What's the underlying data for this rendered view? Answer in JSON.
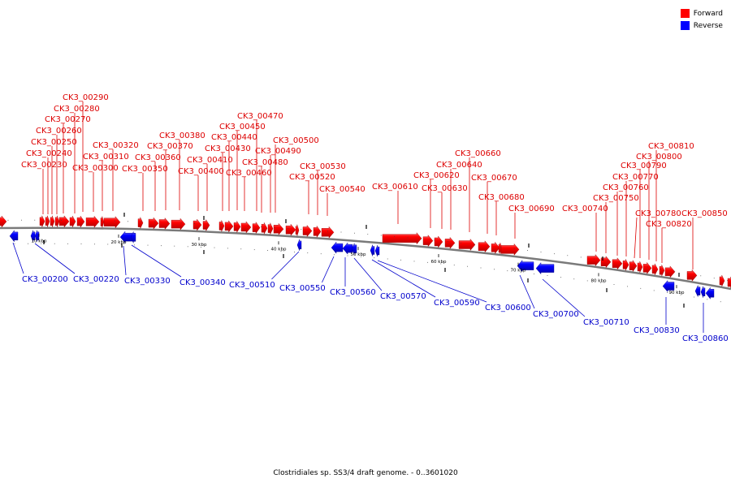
{
  "legend": {
    "forward_label": "Forward",
    "reverse_label": "Reverse",
    "forward_color": "#ff0000",
    "reverse_color": "#0000ff"
  },
  "caption": "Clostridiales sp. SS3/4 draft genome. - 0..3601020",
  "tick_labels": [
    "10 kbp",
    "20 kbp",
    "30 kbp",
    "40 kbp",
    "50 kbp",
    "60 kbp",
    "70 kbp",
    "80 kbp",
    "90 kbp"
  ],
  "forward_genes": [
    "CK3_00230",
    "CK3_00240",
    "CK3_00250",
    "CK3_00260",
    "CK3_00270",
    "CK3_00280",
    "CK3_00290",
    "CK3_00300",
    "CK3_00310",
    "CK3_00320",
    "CK3_00350",
    "CK3_00360",
    "CK3_00370",
    "CK3_00380",
    "CK3_00400",
    "CK3_00410",
    "CK3_00430",
    "CK3_00440",
    "CK3_00450",
    "CK3_00460",
    "CK3_00470",
    "CK3_00480",
    "CK3_00490",
    "CK3_00500",
    "CK3_00520",
    "CK3_00530",
    "CK3_00540",
    "CK3_00610",
    "CK3_00620",
    "CK3_00630",
    "CK3_00640",
    "CK3_00660",
    "CK3_00670",
    "CK3_00680",
    "CK3_00690",
    "CK3_00740",
    "CK3_00750",
    "CK3_00760",
    "CK3_00770",
    "CK3_00780",
    "CK3_00790",
    "CK3_00800",
    "CK3_00810",
    "CK3_00820",
    "CK3_00850"
  ],
  "reverse_genes": [
    "CK3_00200",
    "CK3_00220",
    "CK3_00330",
    "CK3_00340",
    "CK3_00510",
    "CK3_00550",
    "CK3_00560",
    "CK3_00570",
    "CK3_00590",
    "CK3_00600",
    "CK3_00700",
    "CK3_00710",
    "CK3_00830",
    "CK3_00860"
  ],
  "colors": {
    "forward": "#ff0000",
    "reverse": "#0000ff",
    "backbone": "#808080",
    "label_forward": "#dd0000",
    "label_reverse": "#0000cc"
  }
}
